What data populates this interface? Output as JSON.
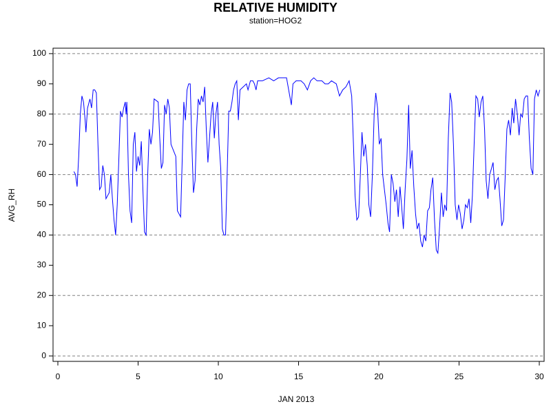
{
  "chart_data": {
    "type": "line",
    "title": "RELATIVE HUMIDITY",
    "subtitle": "station=HOG2",
    "x_label": "JAN 2013",
    "y_label": "AVG_RH",
    "xlim": [
      -0.3,
      30.3
    ],
    "ylim": [
      -1.8,
      101.8
    ],
    "xticks": [
      0,
      5,
      10,
      15,
      20,
      25,
      30
    ],
    "yticks": [
      0,
      10,
      20,
      30,
      40,
      50,
      60,
      70,
      80,
      90,
      100
    ],
    "ygrid": [
      0,
      20,
      40,
      60,
      80,
      100
    ],
    "series": [
      {
        "name": "AVG_RH",
        "color": "#0000ff",
        "x": [
          1.0,
          1.1,
          1.2,
          1.3,
          1.4,
          1.5,
          1.6,
          1.7,
          1.75,
          1.85,
          2.0,
          2.1,
          2.2,
          2.3,
          2.4,
          2.5,
          2.6,
          2.7,
          2.8,
          2.9,
          3.0,
          3.1,
          3.2,
          3.3,
          3.4,
          3.5,
          3.6,
          3.7,
          3.8,
          3.9,
          4.0,
          4.1,
          4.2,
          4.25,
          4.3,
          4.4,
          4.5,
          4.6,
          4.7,
          4.8,
          4.9,
          5.0,
          5.1,
          5.2,
          5.3,
          5.4,
          5.5,
          5.6,
          5.7,
          5.8,
          5.9,
          6.0,
          6.25,
          6.35,
          6.45,
          6.55,
          6.65,
          6.75,
          6.85,
          6.95,
          7.05,
          7.35,
          7.45,
          7.55,
          7.65,
          7.75,
          7.85,
          7.95,
          8.05,
          8.15,
          8.25,
          8.35,
          8.45,
          8.55,
          8.65,
          8.75,
          8.85,
          8.95,
          9.05,
          9.15,
          9.25,
          9.35,
          9.45,
          9.55,
          9.65,
          9.75,
          9.85,
          9.95,
          10.05,
          10.15,
          10.25,
          10.35,
          10.45,
          10.55,
          10.65,
          10.75,
          10.85,
          10.95,
          11.05,
          11.15,
          11.25,
          11.35,
          11.55,
          11.75,
          11.85,
          12.0,
          12.15,
          12.25,
          12.35,
          12.45,
          12.75,
          13.15,
          13.45,
          13.75,
          14.05,
          14.25,
          14.45,
          14.55,
          14.65,
          14.85,
          15.15,
          15.35,
          15.55,
          15.75,
          15.95,
          16.15,
          16.45,
          16.65,
          16.85,
          17.05,
          17.35,
          17.55,
          17.75,
          17.95,
          18.15,
          18.31,
          18.42,
          18.52,
          18.63,
          18.74,
          18.85,
          18.95,
          19.06,
          19.17,
          19.28,
          19.38,
          19.49,
          19.6,
          19.71,
          19.81,
          19.92,
          20.03,
          20.14,
          20.24,
          20.35,
          20.46,
          20.57,
          20.67,
          20.78,
          20.89,
          21.0,
          21.1,
          21.21,
          21.32,
          21.43,
          21.53,
          21.64,
          21.75,
          21.86,
          21.96,
          22.07,
          22.18,
          22.29,
          22.39,
          22.5,
          22.61,
          22.72,
          22.82,
          22.93,
          23.04,
          23.15,
          23.25,
          23.36,
          23.47,
          23.58,
          23.68,
          23.79,
          23.9,
          24.01,
          24.11,
          24.22,
          24.33,
          24.44,
          24.54,
          24.65,
          24.76,
          24.87,
          24.97,
          25.08,
          25.19,
          25.3,
          25.4,
          25.51,
          25.62,
          25.73,
          25.83,
          25.94,
          26.05,
          26.16,
          26.26,
          26.37,
          26.48,
          26.59,
          26.69,
          26.8,
          26.91,
          27.02,
          27.12,
          27.23,
          27.34,
          27.45,
          27.55,
          27.66,
          27.77,
          27.88,
          27.98,
          28.09,
          28.2,
          28.31,
          28.41,
          28.52,
          28.63,
          28.74,
          28.84,
          28.95,
          29.06,
          29.17,
          29.27,
          29.38,
          29.49,
          29.6,
          29.7,
          29.81,
          29.92,
          30.03
        ],
        "values": [
          61,
          60,
          56,
          66,
          80,
          86,
          84,
          78,
          74,
          82,
          85,
          82,
          88,
          88,
          87,
          70,
          55,
          56,
          63,
          60,
          52,
          53,
          54,
          60,
          52,
          45,
          40,
          50,
          65,
          81,
          79,
          82,
          84,
          80,
          84,
          60,
          48,
          44,
          70,
          74,
          61,
          66,
          63,
          71,
          55,
          41,
          40,
          60,
          75,
          70,
          74,
          85,
          84,
          72,
          62,
          64,
          83,
          80,
          85,
          82,
          70,
          66,
          48,
          47,
          46,
          65,
          84,
          78,
          88,
          90,
          90,
          70,
          54,
          58,
          75,
          85,
          83,
          86,
          84,
          89,
          75,
          64,
          72,
          80,
          84,
          72,
          80,
          84,
          70,
          62,
          42,
          40,
          40,
          60,
          81,
          81,
          84,
          88,
          90,
          91,
          78,
          88,
          89,
          90,
          88,
          91,
          91,
          90,
          88,
          91,
          91,
          92,
          91,
          92,
          92,
          92,
          86,
          83,
          90,
          91,
          91,
          90,
          88,
          91,
          92,
          91,
          91,
          90,
          90,
          91,
          90,
          86,
          88,
          89,
          91,
          86,
          70,
          53,
          45,
          46,
          60,
          74,
          66,
          70,
          63,
          50,
          46,
          60,
          80,
          87,
          82,
          70,
          72,
          60,
          55,
          50,
          44,
          41,
          60,
          57,
          51,
          55,
          46,
          56,
          49,
          42,
          55,
          65,
          83,
          62,
          68,
          56,
          47,
          42,
          44,
          38,
          36,
          40,
          38,
          48,
          49,
          55,
          59,
          45,
          35,
          34,
          43,
          54,
          46,
          50,
          48,
          72,
          87,
          84,
          70,
          50,
          45,
          50,
          47,
          42,
          45,
          50,
          49,
          52,
          44,
          53,
          70,
          86,
          85,
          79,
          84,
          86,
          75,
          58,
          52,
          60,
          62,
          64,
          55,
          58,
          59,
          52,
          43,
          45,
          60,
          75,
          78,
          73,
          82,
          77,
          85,
          80,
          73,
          80,
          79,
          85,
          86,
          86,
          72,
          62,
          60,
          85,
          88,
          86,
          88
        ]
      }
    ]
  }
}
